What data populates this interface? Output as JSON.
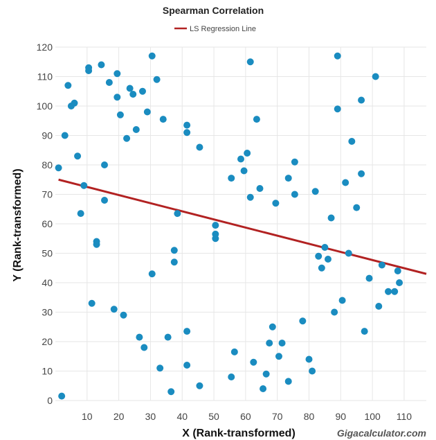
{
  "chart_data": {
    "type": "scatter",
    "title": "Spearman Correlation",
    "xlabel": "X (Rank-transformed)",
    "ylabel": "Y (Rank-transformed)",
    "xlim": [
      0,
      117
    ],
    "ylim": [
      0,
      120
    ],
    "x_ticks": [
      10,
      20,
      30,
      40,
      50,
      60,
      70,
      80,
      90,
      100,
      110
    ],
    "y_ticks": [
      0,
      10,
      20,
      30,
      40,
      50,
      60,
      70,
      80,
      90,
      100,
      110,
      120
    ],
    "grid": true,
    "legend_position": "top-center",
    "points_color": "#1a8cc0",
    "regression": {
      "name": "LS Regression Line",
      "color": "#b22222",
      "x": [
        1,
        117
      ],
      "y": [
        75,
        43
      ]
    },
    "points": [
      [
        1,
        79
      ],
      [
        2,
        1.5
      ],
      [
        3,
        90
      ],
      [
        4,
        107
      ],
      [
        5,
        100
      ],
      [
        6,
        101
      ],
      [
        7,
        83
      ],
      [
        8,
        63.5
      ],
      [
        9,
        73
      ],
      [
        10.5,
        113
      ],
      [
        10.5,
        112
      ],
      [
        11.5,
        33
      ],
      [
        13,
        54
      ],
      [
        13,
        53
      ],
      [
        14.5,
        114
      ],
      [
        15.5,
        80
      ],
      [
        15.5,
        68
      ],
      [
        17,
        108
      ],
      [
        18.5,
        31
      ],
      [
        19.5,
        111
      ],
      [
        19.5,
        103
      ],
      [
        20.5,
        97
      ],
      [
        21.5,
        29
      ],
      [
        22.5,
        89
      ],
      [
        23.5,
        106
      ],
      [
        24.5,
        104
      ],
      [
        25.5,
        92
      ],
      [
        26.5,
        21.5
      ],
      [
        27.5,
        105
      ],
      [
        28,
        18
      ],
      [
        29,
        98
      ],
      [
        30.5,
        117
      ],
      [
        30.5,
        43
      ],
      [
        32,
        109
      ],
      [
        33,
        11
      ],
      [
        34,
        95.5
      ],
      [
        35.5,
        21.5
      ],
      [
        36.5,
        3
      ],
      [
        37.5,
        51
      ],
      [
        37.5,
        47
      ],
      [
        38.5,
        63.5
      ],
      [
        41.5,
        93.5
      ],
      [
        41.5,
        91
      ],
      [
        41.5,
        23.5
      ],
      [
        41.5,
        12
      ],
      [
        45.5,
        86
      ],
      [
        45.5,
        5
      ],
      [
        50.5,
        59.5
      ],
      [
        50.5,
        56.5
      ],
      [
        50.5,
        55
      ],
      [
        55.5,
        8
      ],
      [
        55.5,
        75.5
      ],
      [
        56.5,
        16.5
      ],
      [
        58.5,
        82
      ],
      [
        59.5,
        78
      ],
      [
        60.5,
        84
      ],
      [
        61.5,
        115
      ],
      [
        61.5,
        69
      ],
      [
        62.5,
        13
      ],
      [
        63.5,
        95.5
      ],
      [
        64.5,
        72
      ],
      [
        65.5,
        4
      ],
      [
        66.5,
        9
      ],
      [
        67.5,
        19.5
      ],
      [
        68.5,
        25
      ],
      [
        69.5,
        67
      ],
      [
        70.5,
        15
      ],
      [
        71.5,
        19.5
      ],
      [
        73.5,
        75.5
      ],
      [
        73.5,
        6.5
      ],
      [
        75.5,
        81
      ],
      [
        75.5,
        70
      ],
      [
        78,
        27
      ],
      [
        80,
        14
      ],
      [
        81,
        10
      ],
      [
        82,
        71
      ],
      [
        83,
        49
      ],
      [
        84,
        45
      ],
      [
        85,
        52
      ],
      [
        86,
        48
      ],
      [
        87,
        62
      ],
      [
        88,
        30
      ],
      [
        89,
        117
      ],
      [
        89,
        99
      ],
      [
        90.5,
        34
      ],
      [
        91.5,
        74
      ],
      [
        92.5,
        50
      ],
      [
        93.5,
        88
      ],
      [
        95,
        65.5
      ],
      [
        96.5,
        102
      ],
      [
        96.5,
        77
      ],
      [
        97.5,
        23.5
      ],
      [
        99,
        41.5
      ],
      [
        101,
        110
      ],
      [
        102,
        32
      ],
      [
        103,
        46
      ],
      [
        105,
        37
      ],
      [
        107,
        37
      ],
      [
        108,
        44
      ],
      [
        108.5,
        40
      ]
    ],
    "credit": "Gigacalculator.com"
  }
}
